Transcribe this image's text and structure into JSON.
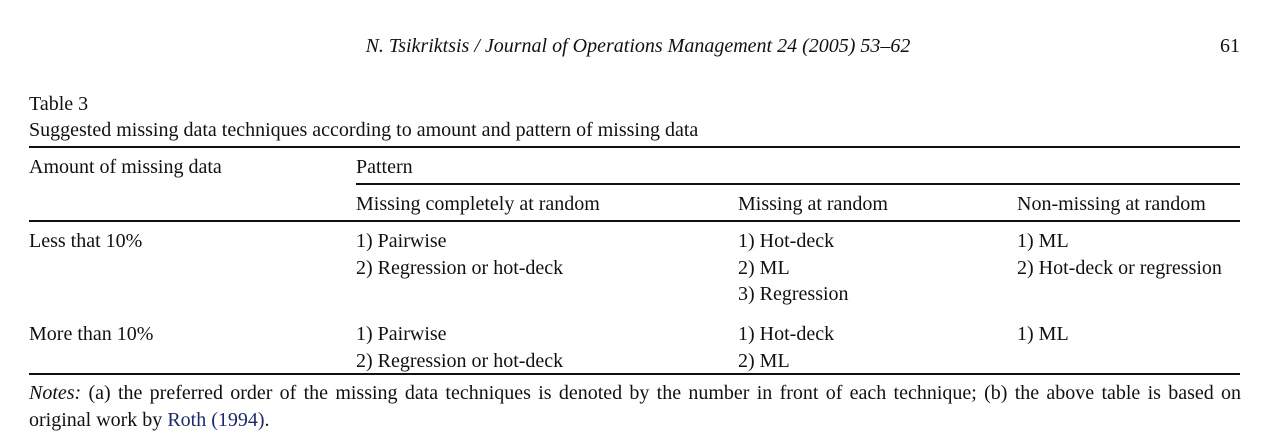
{
  "header": {
    "running_head": "N. Tsikriktsis / Journal of Operations Management 24 (2005) 53–62",
    "page_number": "61"
  },
  "table": {
    "label": "Table 3",
    "caption": "Suggested missing data techniques according to amount and pattern of missing data",
    "row_header": "Amount of missing data",
    "group_header": "Pattern",
    "columns": [
      "Missing completely at random",
      "Missing at random",
      "Non-missing at random"
    ],
    "rows": [
      {
        "amount": "Less that 10%",
        "cells": [
          [
            "1) Pairwise",
            "2) Regression or hot-deck"
          ],
          [
            "1) Hot-deck",
            "2) ML",
            "3) Regression"
          ],
          [
            "1) ML",
            "2) Hot-deck or regression"
          ]
        ]
      },
      {
        "amount": "More than 10%",
        "cells": [
          [
            "1) Pairwise",
            "2) Regression or hot-deck"
          ],
          [
            "1) Hot-deck",
            "2) ML"
          ],
          [
            "1) ML"
          ]
        ]
      }
    ]
  },
  "notes": {
    "label": "Notes:",
    "text": "(a) the preferred order of the missing data techniques is denoted by the number in front of each technique; (b) the above table is based on original work by",
    "citation": "Roth (1994)",
    "end": "."
  }
}
